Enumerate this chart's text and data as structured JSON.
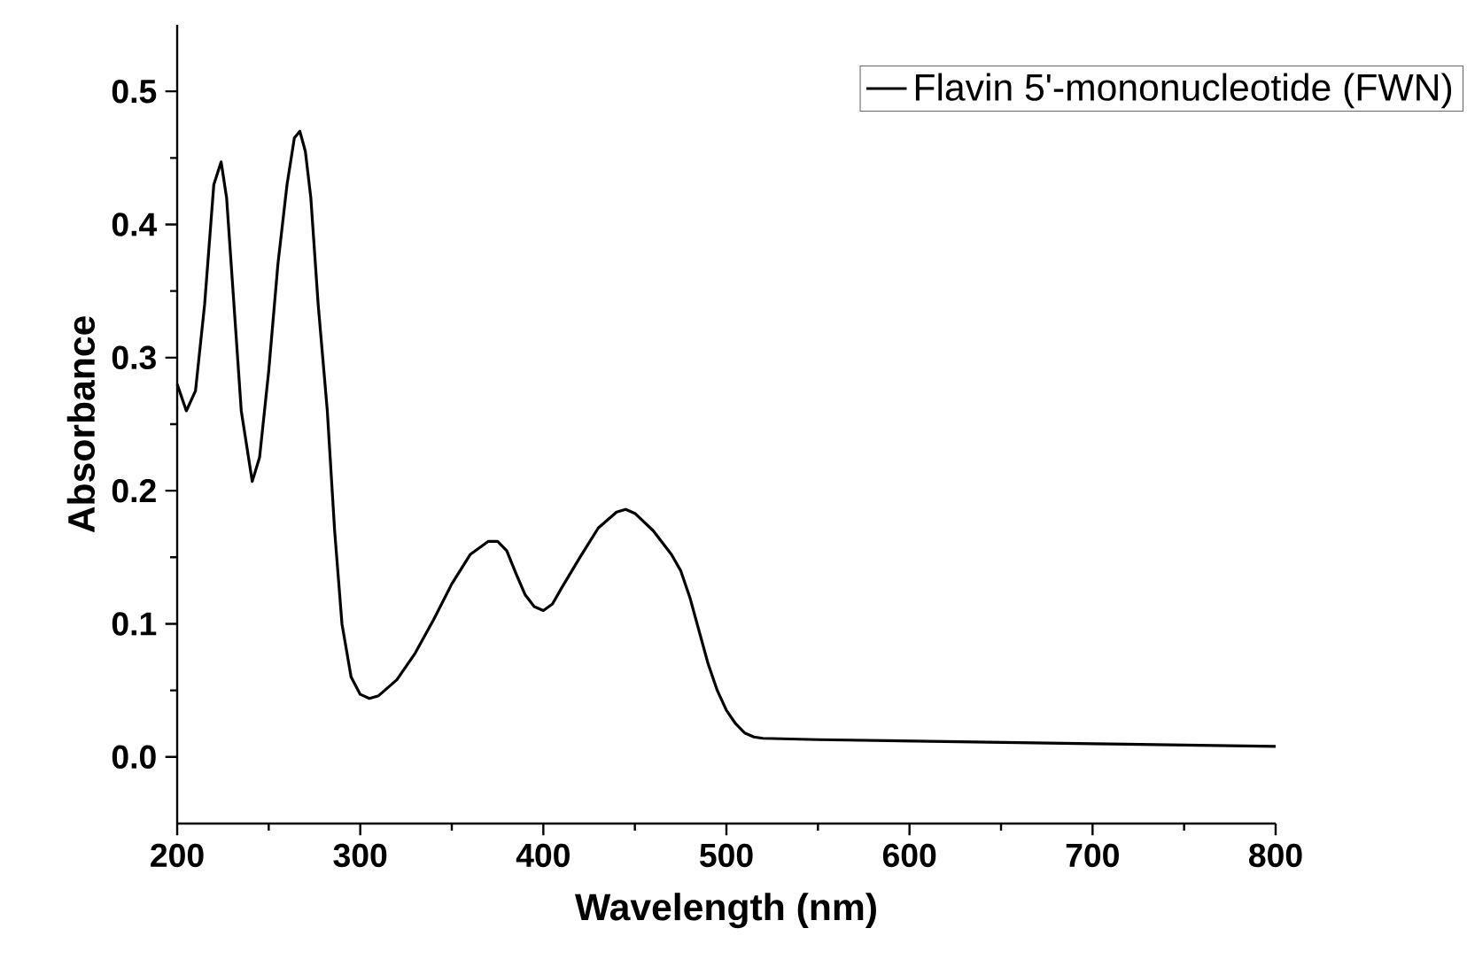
{
  "chart_data": {
    "type": "line",
    "xlabel": "Wavelength (nm)",
    "ylabel": "Absorbance",
    "x": [
      200,
      205,
      210,
      215,
      220,
      224,
      227,
      230,
      235,
      241,
      245,
      250,
      255,
      260,
      264,
      267,
      270,
      273,
      277,
      282,
      286,
      290,
      295,
      300,
      305,
      310,
      320,
      330,
      340,
      350,
      360,
      370,
      375,
      380,
      385,
      390,
      395,
      400,
      405,
      410,
      420,
      430,
      440,
      445,
      450,
      460,
      470,
      475,
      480,
      485,
      490,
      495,
      500,
      505,
      510,
      515,
      520,
      550,
      600,
      650,
      700,
      750,
      800
    ],
    "series": [
      {
        "name": "Flavin 5'-mononucleotide (FWN)",
        "color": "#000000",
        "values": [
          0.28,
          0.26,
          0.275,
          0.34,
          0.43,
          0.447,
          0.42,
          0.36,
          0.26,
          0.207,
          0.225,
          0.29,
          0.37,
          0.43,
          0.465,
          0.47,
          0.455,
          0.42,
          0.34,
          0.26,
          0.17,
          0.1,
          0.06,
          0.047,
          0.044,
          0.046,
          0.058,
          0.078,
          0.103,
          0.13,
          0.152,
          0.162,
          0.162,
          0.155,
          0.138,
          0.122,
          0.113,
          0.11,
          0.115,
          0.127,
          0.15,
          0.172,
          0.184,
          0.186,
          0.183,
          0.17,
          0.152,
          0.14,
          0.12,
          0.095,
          0.07,
          0.05,
          0.035,
          0.025,
          0.018,
          0.015,
          0.014,
          0.013,
          0.012,
          0.011,
          0.01,
          0.009,
          0.008
        ]
      }
    ],
    "xlim": [
      200,
      800
    ],
    "ylim": [
      -0.05,
      0.55
    ],
    "xticks": [
      200,
      300,
      400,
      500,
      600,
      700,
      800
    ],
    "yticks": [
      {
        "value": 0,
        "label": "0.0"
      },
      0.1,
      0.2,
      0.3,
      0.4,
      0.5
    ],
    "legend": "top right",
    "marker": "none",
    "line_style": "solid",
    "grid": false
  }
}
